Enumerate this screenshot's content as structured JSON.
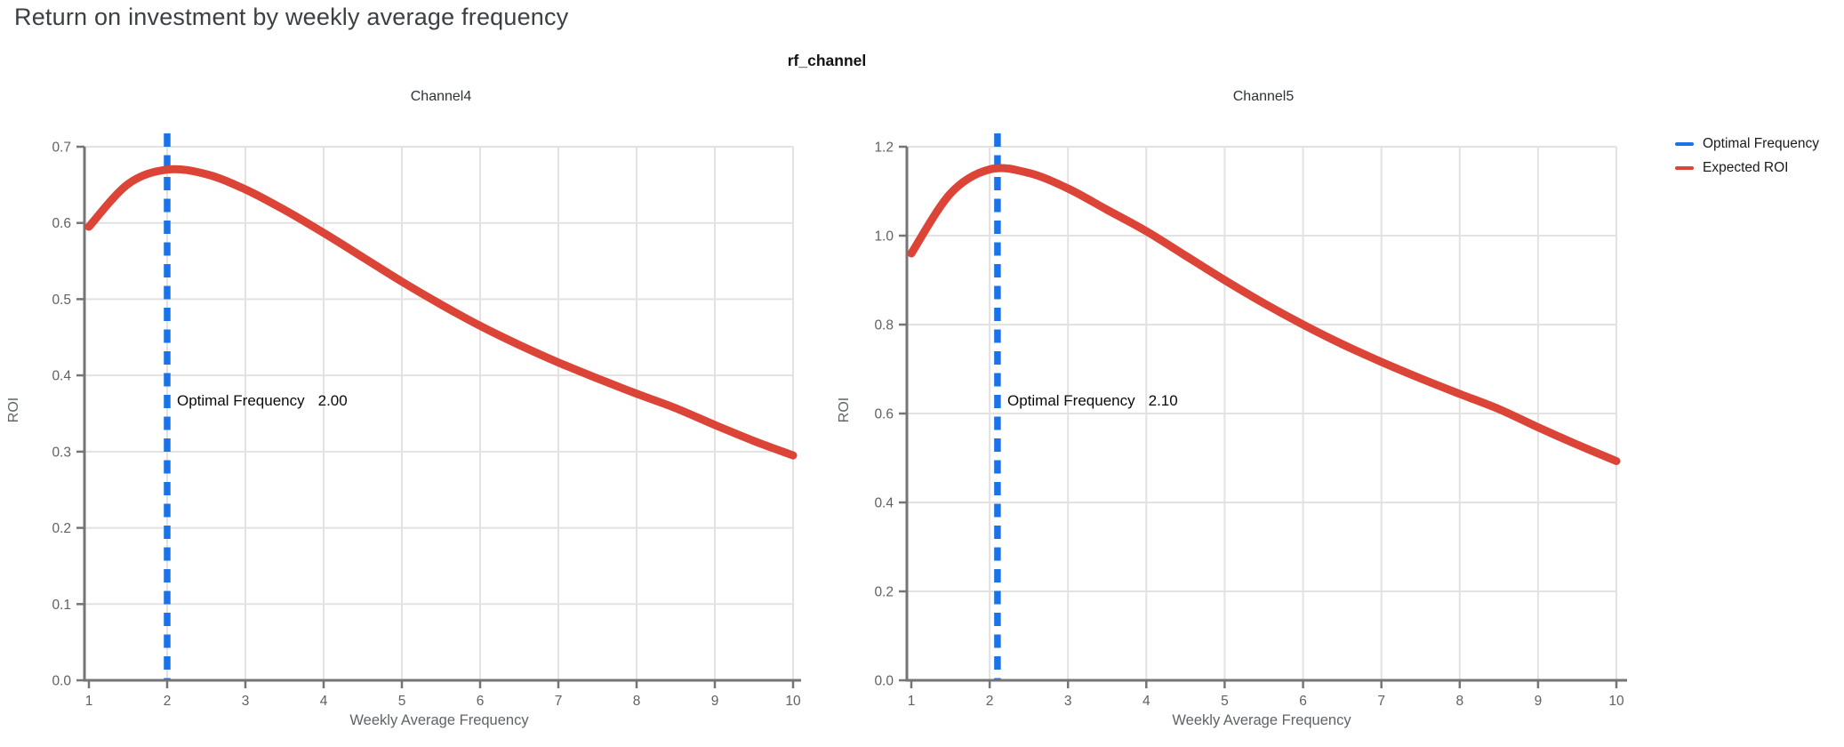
{
  "page_title": "Return on investment by weekly average frequency",
  "figure_title": "rf_channel",
  "colors": {
    "optimal_frequency_line": "#1A73E8",
    "expected_roi_line": "#DB4437",
    "gridline": "#E2E2E2",
    "axis_line": "#757575",
    "tick_label": "#616161",
    "title_text": "#3c4043"
  },
  "legend": {
    "items": [
      {
        "label": "Optimal Frequency",
        "color": "#1A73E8"
      },
      {
        "label": "Expected ROI",
        "color": "#DB4437"
      }
    ]
  },
  "chart_data": [
    {
      "type": "line",
      "title": "Channel4",
      "xlabel": "Weekly Average Frequency",
      "ylabel": "ROI",
      "xlim": [
        1,
        10
      ],
      "ylim": [
        0,
        0.7
      ],
      "xticks": [
        1,
        2,
        3,
        4,
        5,
        6,
        7,
        8,
        9,
        10
      ],
      "xtick_labels": [
        "1",
        "2",
        "3",
        "4",
        "5",
        "6",
        "7",
        "8",
        "9",
        "10"
      ],
      "yticks": [
        0.0,
        0.1,
        0.2,
        0.3,
        0.4,
        0.5,
        0.6,
        0.7
      ],
      "ytick_labels": [
        "0.0",
        "0.1",
        "0.2",
        "0.3",
        "0.4",
        "0.5",
        "0.6",
        "0.7"
      ],
      "grid": true,
      "optimal_frequency": 2.0,
      "annotation": {
        "label": "Optimal Frequency",
        "value": "2.00"
      },
      "series": [
        {
          "name": "Expected ROI",
          "x": [
            1,
            1.5,
            2,
            2.5,
            3,
            3.5,
            4,
            4.5,
            5,
            5.5,
            6,
            6.5,
            7,
            7.5,
            8,
            8.5,
            9,
            9.5,
            10
          ],
          "y": [
            0.595,
            0.651,
            0.67,
            0.664,
            0.644,
            0.617,
            0.587,
            0.555,
            0.523,
            0.493,
            0.465,
            0.44,
            0.417,
            0.396,
            0.376,
            0.357,
            0.335,
            0.314,
            0.295
          ]
        }
      ]
    },
    {
      "type": "line",
      "title": "Channel5",
      "xlabel": "Weekly Average Frequency",
      "ylabel": "ROI",
      "xlim": [
        1,
        10
      ],
      "ylim": [
        0,
        1.2
      ],
      "xticks": [
        1,
        2,
        3,
        4,
        5,
        6,
        7,
        8,
        9,
        10
      ],
      "xtick_labels": [
        "1",
        "2",
        "3",
        "4",
        "5",
        "6",
        "7",
        "8",
        "9",
        "10"
      ],
      "yticks": [
        0.0,
        0.2,
        0.4,
        0.6,
        0.8,
        1.0,
        1.2
      ],
      "ytick_labels": [
        "0.0",
        "0.2",
        "0.4",
        "0.6",
        "0.8",
        "1.0",
        "1.2"
      ],
      "grid": true,
      "optimal_frequency": 2.1,
      "annotation": {
        "label": "Optimal Frequency",
        "value": "2.10"
      },
      "series": [
        {
          "name": "Expected ROI",
          "x": [
            1,
            1.5,
            2,
            2.5,
            3,
            3.5,
            4,
            4.5,
            5,
            5.5,
            6,
            6.5,
            7,
            7.5,
            8,
            8.5,
            9,
            9.5,
            10
          ],
          "y": [
            0.96,
            1.095,
            1.149,
            1.141,
            1.106,
            1.058,
            1.01,
            0.955,
            0.9,
            0.848,
            0.8,
            0.756,
            0.716,
            0.679,
            0.644,
            0.61,
            0.569,
            0.53,
            0.493
          ]
        }
      ]
    }
  ]
}
